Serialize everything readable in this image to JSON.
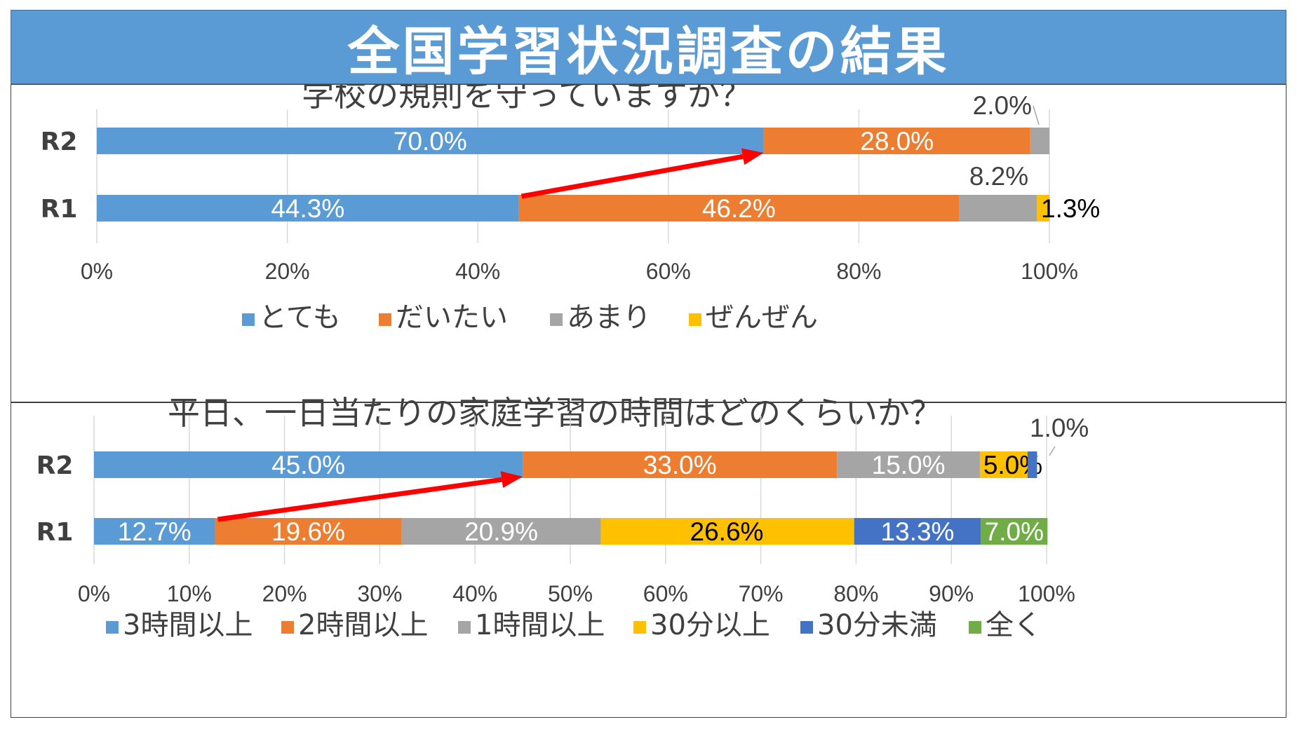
{
  "header": {
    "title": "全国学習状況調査の結果"
  },
  "chart_data": [
    {
      "type": "bar",
      "orientation": "horizontal",
      "stacked": "100%",
      "title": "学校の規則を守っていますか？",
      "categories": [
        "R2",
        "R1"
      ],
      "series": [
        {
          "name": "とても",
          "color": "#5b9bd5",
          "values": [
            70.0,
            44.3
          ],
          "labels": [
            "70.0%",
            "44.3%"
          ]
        },
        {
          "name": "だいたい",
          "color": "#ed7d31",
          "values": [
            28.0,
            46.2
          ],
          "labels": [
            "28.0%",
            "46.2%"
          ]
        },
        {
          "name": "あまり",
          "color": "#a5a5a5",
          "values": [
            2.0,
            8.2
          ],
          "labels": [
            "2.0%",
            "8.2%"
          ]
        },
        {
          "name": "ぜんぜん",
          "color": "#ffc000",
          "values": [
            0,
            1.3
          ],
          "labels": [
            "",
            "1.3%"
          ]
        }
      ],
      "xlim": [
        0,
        100
      ],
      "x_ticks": [
        "0%",
        "20%",
        "40%",
        "60%",
        "80%",
        "100%"
      ],
      "legend": "bottom",
      "grid": true,
      "annotation": "arrow from R1 とても end to R2 とても end"
    },
    {
      "type": "bar",
      "orientation": "horizontal",
      "stacked": "100%",
      "title": "平日、一日当たりの家庭学習の時間はどのくらいか？",
      "categories": [
        "R2",
        "R1"
      ],
      "series": [
        {
          "name": "3時間以上",
          "color": "#5b9bd5",
          "values": [
            45.0,
            12.7
          ],
          "labels": [
            "45.0%",
            "12.7%"
          ]
        },
        {
          "name": "2時間以上",
          "color": "#ed7d31",
          "values": [
            33.0,
            19.6
          ],
          "labels": [
            "33.0%",
            "19.6%"
          ]
        },
        {
          "name": "1時間以上",
          "color": "#a5a5a5",
          "values": [
            15.0,
            20.9
          ],
          "labels": [
            "15.0%",
            "20.9%"
          ]
        },
        {
          "name": "30分以上",
          "color": "#ffc000",
          "values": [
            5.0,
            26.6
          ],
          "labels": [
            "5.0%",
            "26.6%"
          ]
        },
        {
          "name": "30分未満",
          "color": "#4472c4",
          "values": [
            1.0,
            13.3
          ],
          "labels": [
            "1.0%",
            "13.3%"
          ]
        },
        {
          "name": "全く",
          "color": "#70ad47",
          "values": [
            0,
            7.0
          ],
          "labels": [
            "",
            "7.0%"
          ]
        }
      ],
      "xlim": [
        0,
        100
      ],
      "x_ticks": [
        "0%",
        "10%",
        "20%",
        "30%",
        "40%",
        "50%",
        "60%",
        "70%",
        "80%",
        "90%",
        "100%"
      ],
      "legend": "bottom",
      "grid": true,
      "annotation": "arrow from R1 3時間以上 end to R2 3時間以上 end"
    }
  ]
}
